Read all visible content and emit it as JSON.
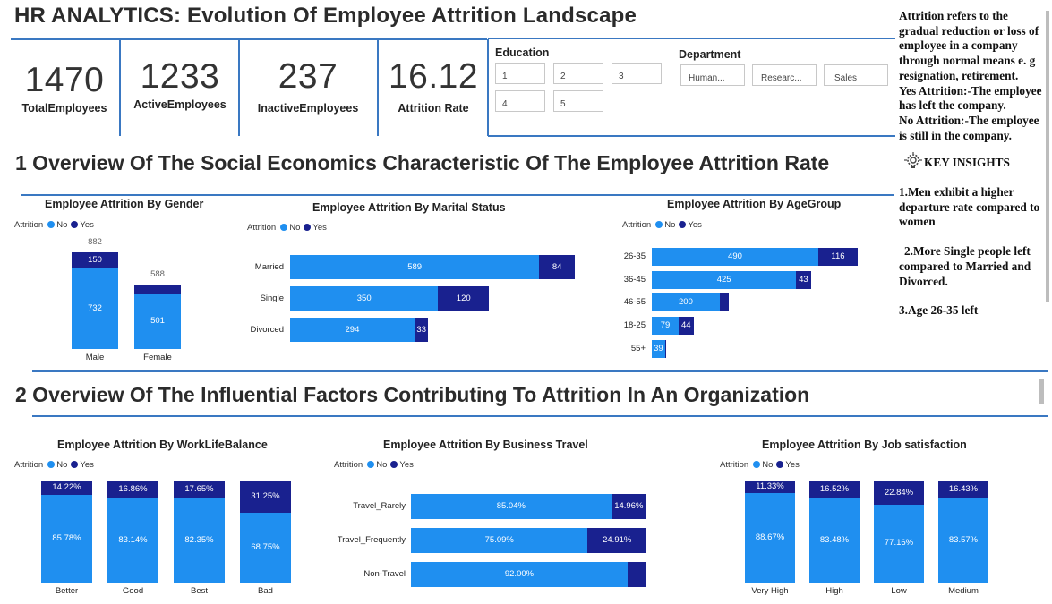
{
  "header": {
    "title": "HR ANALYTICS: Evolution Of Employee Attrition Landscape"
  },
  "kpis": [
    {
      "value": "1470",
      "label": "TotalEmployees"
    },
    {
      "value": "1233",
      "label": "ActiveEmployees"
    },
    {
      "value": "237",
      "label": "InactiveEmployees"
    },
    {
      "value": "16.12",
      "label": "Attrition Rate"
    }
  ],
  "slicers": {
    "education": {
      "title": "Education",
      "options": [
        "1",
        "2",
        "3",
        "4",
        "5"
      ]
    },
    "department": {
      "title": "Department",
      "options": [
        "Human...",
        "Researc...",
        "Sales"
      ]
    }
  },
  "sections": {
    "s1": "1 Overview Of The Social Economics Characteristic Of The Employee Attrition Rate",
    "s2": "2 Overview Of The Influential Factors Contributing To Attrition In An Organization"
  },
  "legend": {
    "label": "Attrition",
    "no": "No",
    "yes": "Yes"
  },
  "colors": {
    "no": "#1f8ff0",
    "yes": "#19218f",
    "accent": "#3a78c2"
  },
  "sidebar": {
    "paragraphs": [
      "Attrition refers to the gradual reduction or loss of employee in a company through normal means e. g resignation, retirement.",
      "Yes Attrition:-The employee has left the company.",
      "No Attrition:-The employee is still in the company."
    ],
    "key_insights_title": "KEY INSIGHTS",
    "key_insights_icon": "lightbulb-gear-icon",
    "insights": [
      "1.Men exhibit a higher departure rate compared to women",
      "2.More Single people left compared to Married and Divorced.",
      "3.Age 26-35 left"
    ]
  },
  "chart_data": [
    {
      "type": "bar",
      "title": "Employee Attrition By Gender",
      "legend_title": "Attrition",
      "categories": [
        "Male",
        "Female"
      ],
      "series": [
        {
          "name": "No",
          "values": [
            732,
            501
          ]
        },
        {
          "name": "Yes",
          "values": [
            150,
            87
          ]
        }
      ],
      "totals": [
        882,
        588
      ],
      "labels": {
        "no": [
          "732",
          "501"
        ],
        "yes": [
          "150",
          ""
        ],
        "totals": [
          "882",
          "588"
        ]
      }
    },
    {
      "type": "bar",
      "orientation": "horizontal",
      "title": "Employee Attrition By Marital Status",
      "legend_title": "Attrition",
      "categories": [
        "Married",
        "Single",
        "Divorced"
      ],
      "series": [
        {
          "name": "No",
          "values": [
            589,
            350,
            294
          ]
        },
        {
          "name": "Yes",
          "values": [
            84,
            120,
            33
          ]
        }
      ],
      "labels": {
        "no": [
          "589",
          "350",
          "294"
        ],
        "yes": [
          "84",
          "120",
          "33"
        ]
      }
    },
    {
      "type": "bar",
      "orientation": "horizontal",
      "title": "Employee Attrition By AgeGroup",
      "legend_title": "Attrition",
      "categories": [
        "26-35",
        "36-45",
        "46-55",
        "18-25",
        "55+"
      ],
      "series": [
        {
          "name": "No",
          "values": [
            490,
            425,
            200,
            79,
            39
          ]
        },
        {
          "name": "Yes",
          "values": [
            116,
            43,
            26,
            44,
            3
          ]
        }
      ],
      "labels": {
        "no": [
          "490",
          "425",
          "200",
          "79",
          "39"
        ],
        "yes": [
          "116",
          "43",
          "",
          "44",
          ""
        ]
      }
    },
    {
      "type": "bar",
      "stacking": "100%",
      "title": "Employee Attrition By WorkLifeBalance",
      "legend_title": "Attrition",
      "categories": [
        "Better",
        "Good",
        "Best",
        "Bad"
      ],
      "series": [
        {
          "name": "No",
          "values": [
            85.78,
            83.14,
            82.35,
            68.75
          ]
        },
        {
          "name": "Yes",
          "values": [
            14.22,
            16.86,
            17.65,
            31.25
          ]
        }
      ],
      "labels": {
        "no": [
          "85.78%",
          "83.14%",
          "82.35%",
          "68.75%"
        ],
        "yes": [
          "14.22%",
          "16.86%",
          "17.65%",
          "31.25%"
        ]
      }
    },
    {
      "type": "bar",
      "orientation": "horizontal",
      "stacking": "100%",
      "title": "Employee Attrition By Business Travel",
      "legend_title": "Attrition",
      "categories": [
        "Travel_Rarely",
        "Travel_Frequently",
        "Non-Travel"
      ],
      "series": [
        {
          "name": "No",
          "values": [
            85.04,
            75.09,
            92.0
          ]
        },
        {
          "name": "Yes",
          "values": [
            14.96,
            24.91,
            8.0
          ]
        }
      ],
      "labels": {
        "no": [
          "85.04%",
          "75.09%",
          "92.00%"
        ],
        "yes": [
          "14.96%",
          "24.91%",
          ""
        ]
      }
    },
    {
      "type": "bar",
      "stacking": "100%",
      "title": "Employee Attrition By Job satisfaction",
      "legend_title": "Attrition",
      "categories": [
        "Very High",
        "High",
        "Low",
        "Medium"
      ],
      "series": [
        {
          "name": "No",
          "values": [
            88.67,
            83.48,
            77.16,
            83.57
          ]
        },
        {
          "name": "Yes",
          "values": [
            11.33,
            16.52,
            22.84,
            16.43
          ]
        }
      ],
      "labels": {
        "no": [
          "88.67%",
          "83.48%",
          "77.16%",
          "83.57%"
        ],
        "yes": [
          "11.33%",
          "16.52%",
          "22.84%",
          "16.43%"
        ]
      }
    }
  ]
}
